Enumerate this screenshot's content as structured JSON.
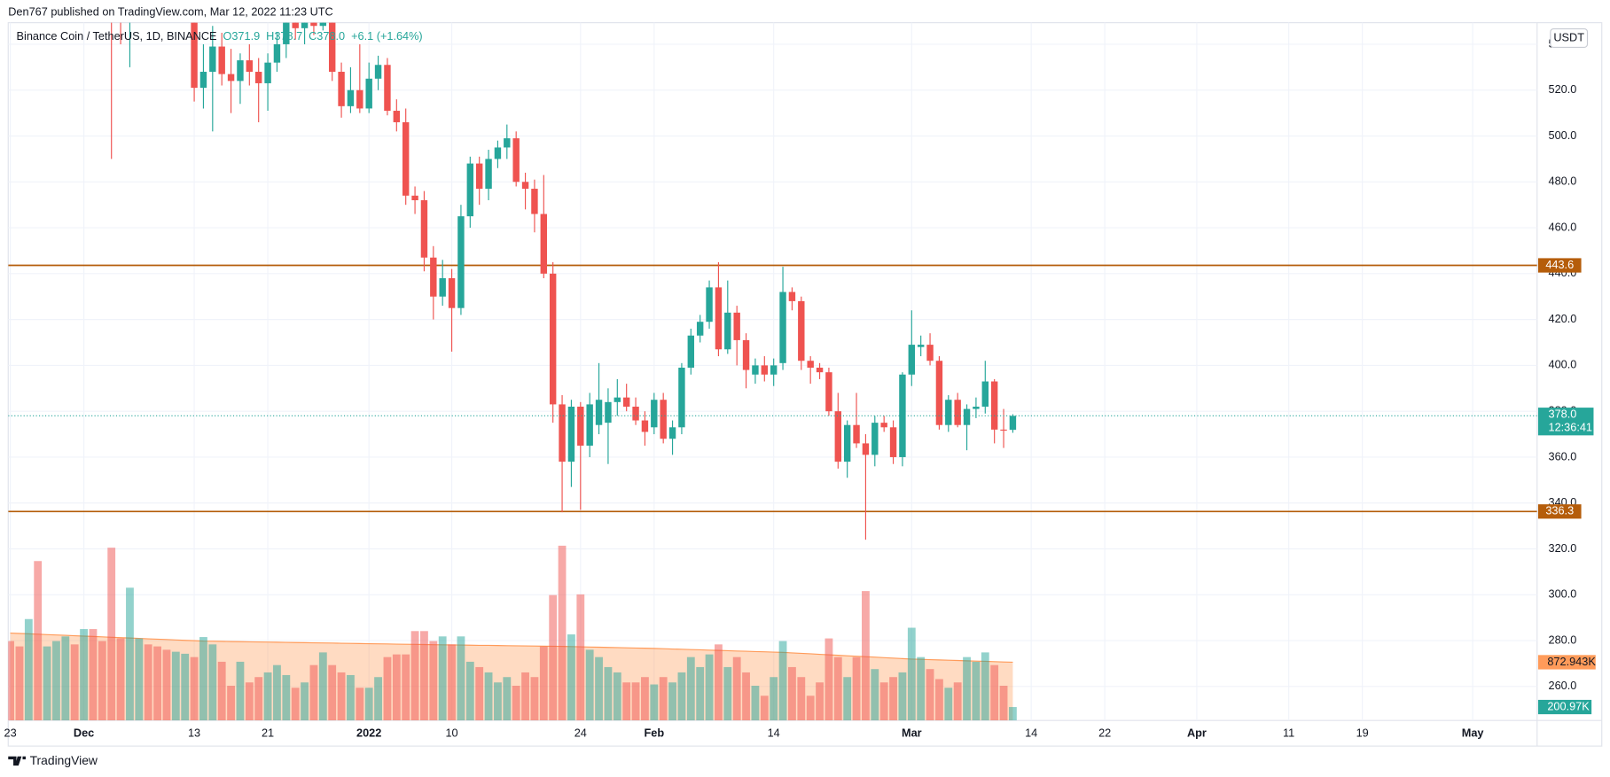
{
  "chart_data": {
    "type": "candlestick",
    "header": "Den767 published on TradingView.com, Mar 12, 2022 11:23 UTC",
    "legend": {
      "symbol": "Binance Coin / TetherUS, 1D, BINANCE",
      "values": [
        "O371.9",
        "H378.7",
        "C378.0",
        "+6.1 (+1.64%)"
      ]
    },
    "currency": "USDT",
    "footer": "TradingView",
    "up_color": "#26a69a",
    "down_color": "#ef5350",
    "x": [
      "2021-11-23",
      "2021-11-24",
      "2021-11-25",
      "2021-11-26",
      "2021-11-27",
      "2021-11-28",
      "2021-11-29",
      "2021-11-30",
      "2021-12-01",
      "2021-12-02",
      "2021-12-03",
      "2021-12-04",
      "2021-12-05",
      "2021-12-06",
      "2021-12-07",
      "2021-12-08",
      "2021-12-09",
      "2021-12-10",
      "2021-12-11",
      "2021-12-12",
      "2021-12-13",
      "2021-12-14",
      "2021-12-15",
      "2021-12-16",
      "2021-12-17",
      "2021-12-18",
      "2021-12-19",
      "2021-12-20",
      "2021-12-21",
      "2021-12-22",
      "2021-12-23",
      "2021-12-24",
      "2021-12-25",
      "2021-12-26",
      "2021-12-27",
      "2021-12-28",
      "2021-12-29",
      "2021-12-30",
      "2021-12-31",
      "2022-01-01",
      "2022-01-02",
      "2022-01-03",
      "2022-01-04",
      "2022-01-05",
      "2022-01-06",
      "2022-01-07",
      "2022-01-08",
      "2022-01-09",
      "2022-01-10",
      "2022-01-11",
      "2022-01-12",
      "2022-01-13",
      "2022-01-14",
      "2022-01-15",
      "2022-01-16",
      "2022-01-17",
      "2022-01-18",
      "2022-01-19",
      "2022-01-20",
      "2022-01-21",
      "2022-01-22",
      "2022-01-23",
      "2022-01-24",
      "2022-01-25",
      "2022-01-26",
      "2022-01-27",
      "2022-01-28",
      "2022-01-29",
      "2022-01-30",
      "2022-01-31",
      "2022-02-01",
      "2022-02-02",
      "2022-02-03",
      "2022-02-04",
      "2022-02-05",
      "2022-02-06",
      "2022-02-07",
      "2022-02-08",
      "2022-02-09",
      "2022-02-10",
      "2022-02-11",
      "2022-02-12",
      "2022-02-13",
      "2022-02-14",
      "2022-02-15",
      "2022-02-16",
      "2022-02-17",
      "2022-02-18",
      "2022-02-19",
      "2022-02-20",
      "2022-02-21",
      "2022-02-22",
      "2022-02-23",
      "2022-02-24",
      "2022-02-25",
      "2022-02-26",
      "2022-02-27",
      "2022-02-28",
      "2022-03-01",
      "2022-03-02",
      "2022-03-03",
      "2022-03-04",
      "2022-03-05",
      "2022-03-06",
      "2022-03-07",
      "2022-03-08",
      "2022-03-09",
      "2022-03-10",
      "2022-03-11",
      "2022-03-12"
    ],
    "open": [
      590,
      578,
      568,
      598,
      576,
      588,
      596,
      620,
      614,
      628,
      606,
      584,
      565,
      556,
      578,
      584,
      578,
      562,
      558,
      566,
      568,
      521,
      528,
      539,
      527,
      524,
      533,
      528,
      523,
      532,
      540,
      556,
      547,
      550,
      548,
      560,
      528,
      513,
      520,
      512,
      525,
      531,
      511,
      506,
      474,
      472,
      447,
      430,
      438,
      425,
      465,
      488,
      477,
      490,
      495,
      499,
      480,
      477,
      466,
      440,
      383,
      358,
      382,
      365,
      374,
      375,
      384,
      386,
      382,
      376,
      373,
      385,
      368,
      373,
      399,
      413,
      419,
      434,
      407,
      423,
      411,
      396,
      400,
      396,
      401,
      432,
      428,
      402,
      399,
      397,
      380,
      358,
      374,
      366,
      361,
      375,
      373,
      360,
      396,
      408,
      409,
      402,
      374,
      385,
      374,
      381,
      382,
      393,
      372,
      371.9
    ],
    "high": [
      598,
      586,
      602,
      605,
      592,
      600,
      628,
      632,
      640,
      636,
      612,
      588,
      574,
      582,
      590,
      592,
      586,
      574,
      570,
      578,
      572,
      540,
      548,
      545,
      538,
      536,
      540,
      534,
      536,
      545,
      562,
      565,
      556,
      562,
      568,
      562,
      532,
      530,
      540,
      532,
      535,
      534,
      516,
      512,
      478,
      476,
      452,
      446,
      442,
      470,
      491,
      491,
      494,
      498,
      505,
      502,
      484,
      481,
      483,
      445,
      387,
      385,
      384,
      388,
      401,
      390,
      394,
      392,
      386,
      380,
      388,
      388,
      376,
      401,
      416,
      422,
      437,
      445,
      437,
      426,
      414,
      403,
      404,
      403,
      443,
      434,
      430,
      404,
      401,
      399,
      388,
      376,
      388,
      370,
      378,
      378,
      376,
      397,
      424,
      413,
      414,
      404,
      387,
      388,
      383,
      386,
      402,
      394,
      381,
      378.7
    ],
    "low": [
      572,
      563,
      565,
      570,
      572,
      566,
      592,
      604,
      610,
      600,
      570,
      490,
      540,
      530,
      568,
      570,
      560,
      552,
      555,
      558,
      515,
      512,
      502,
      522,
      510,
      514,
      522,
      506,
      511,
      528,
      534,
      542,
      540,
      544,
      546,
      524,
      508,
      510,
      510,
      510,
      520,
      509,
      502,
      470,
      466,
      441,
      420,
      426,
      406,
      422,
      460,
      470,
      472,
      486,
      490,
      478,
      468,
      458,
      438,
      375,
      336,
      347,
      337,
      360,
      370,
      357,
      378,
      380,
      374,
      365,
      370,
      366,
      361,
      370,
      396,
      410,
      416,
      404,
      405,
      400,
      390,
      392,
      393,
      391,
      398,
      424,
      398,
      392,
      394,
      378,
      355,
      351,
      364,
      324,
      356,
      371,
      357,
      356,
      391,
      404,
      400,
      372,
      371,
      373,
      363,
      377,
      379,
      366,
      364,
      370.6
    ],
    "close": [
      578,
      568,
      598,
      576,
      588,
      596,
      620,
      614,
      628,
      606,
      584,
      565,
      556,
      578,
      584,
      578,
      562,
      558,
      566,
      568,
      521,
      528,
      539,
      527,
      524,
      533,
      528,
      523,
      532,
      540,
      556,
      547,
      550,
      548,
      560,
      528,
      513,
      520,
      512,
      525,
      531,
      511,
      506,
      474,
      472,
      447,
      430,
      438,
      425,
      465,
      488,
      477,
      490,
      495,
      499,
      480,
      477,
      466,
      440,
      383,
      358,
      382,
      365,
      383,
      385,
      384,
      386,
      382,
      376,
      371,
      385,
      368,
      373,
      399,
      413,
      419,
      434,
      407,
      423,
      411,
      398,
      400,
      396,
      400,
      432,
      428,
      402,
      399,
      397,
      380,
      358,
      374,
      366,
      361,
      375,
      373,
      360,
      396,
      409,
      409,
      402,
      374,
      385,
      374,
      381,
      382,
      393,
      372,
      371.9,
      378.0
    ],
    "last_price_label": "378.0",
    "countdown": "12:36:41",
    "xlim": [
      "2021-11-23",
      "2022-05-08"
    ],
    "xticks": [
      {
        "value": "2021-11-23",
        "label": "23"
      },
      {
        "value": "2021-12-01",
        "label": "Dec"
      },
      {
        "value": "2021-12-13",
        "label": "13"
      },
      {
        "value": "2021-12-21",
        "label": "21"
      },
      {
        "value": "2022-01-01",
        "label": "2022"
      },
      {
        "value": "2022-01-10",
        "label": "10"
      },
      {
        "value": "2022-01-24",
        "label": "24"
      },
      {
        "value": "2022-02-01",
        "label": "Feb"
      },
      {
        "value": "2022-02-14",
        "label": "14"
      },
      {
        "value": "2022-03-01",
        "label": "Mar"
      },
      {
        "value": "2022-03-14",
        "label": "14"
      },
      {
        "value": "2022-03-22",
        "label": "22"
      },
      {
        "value": "2022-04-01",
        "label": "Apr"
      },
      {
        "value": "2022-04-11",
        "label": "11"
      },
      {
        "value": "2022-04-19",
        "label": "19"
      },
      {
        "value": "2022-05-01",
        "label": "May"
      }
    ],
    "ylim": [
      245.2,
      549.4
    ],
    "yticks": [
      {
        "value": 260,
        "label": "260.0"
      },
      {
        "value": 280,
        "label": "280.0"
      },
      {
        "value": 300,
        "label": "300.0"
      },
      {
        "value": 320,
        "label": "320.0"
      },
      {
        "value": 340,
        "label": "340.0"
      },
      {
        "value": 360,
        "label": "360.0"
      },
      {
        "value": 380,
        "label": "380.0"
      },
      {
        "value": 400,
        "label": "400.0"
      },
      {
        "value": 420,
        "label": "420.0"
      },
      {
        "value": 440,
        "label": "440.0"
      },
      {
        "value": 460,
        "label": "460.0"
      },
      {
        "value": 480,
        "label": "480.0"
      },
      {
        "value": 500,
        "label": "500.0"
      },
      {
        "value": 520,
        "label": "520.0"
      },
      {
        "value": 540,
        "label": "540.0"
      }
    ],
    "grid": true,
    "levels": [
      {
        "value": 443.6,
        "color": "#b55d0a"
      },
      {
        "value": 336.3,
        "color": "#b55d0a"
      }
    ],
    "volume": {
      "ylim": [
        0,
        3000000
      ],
      "up_color": "rgba(38,166,154,0.5)",
      "down_color": "rgba(239,83,80,0.5)",
      "label_color": "#26a69a",
      "values": [
        1190000,
        1110000,
        1520000,
        2390000,
        1110000,
        1190000,
        1260000,
        1140000,
        1370000,
        1370000,
        1190000,
        2590000,
        1230000,
        1990000,
        1230000,
        1140000,
        1110000,
        1060000,
        1030000,
        1000000,
        950000,
        1250000,
        1140000,
        880000,
        520000,
        880000,
        570000,
        650000,
        720000,
        830000,
        680000,
        490000,
        570000,
        830000,
        1020000,
        830000,
        720000,
        680000,
        490000,
        490000,
        650000,
        950000,
        990000,
        990000,
        1340000,
        1340000,
        1190000,
        1260000,
        1140000,
        1260000,
        880000,
        800000,
        720000,
        570000,
        650000,
        520000,
        720000,
        650000,
        1110000,
        1880000,
        2620000,
        1290000,
        1890000,
        1060000,
        950000,
        800000,
        720000,
        570000,
        570000,
        650000,
        540000,
        650000,
        570000,
        720000,
        950000,
        800000,
        990000,
        1140000,
        800000,
        950000,
        720000,
        520000,
        370000,
        650000,
        1190000,
        800000,
        650000,
        370000,
        570000,
        1230000,
        950000,
        650000,
        950000,
        1940000,
        770000,
        570000,
        650000,
        720000,
        1390000,
        950000,
        770000,
        620000,
        490000,
        570000,
        950000,
        880000,
        1020000,
        830000,
        520000,
        200970
      ],
      "last_label": "200.97K",
      "ma": {
        "color": "#ff9b5a",
        "fill": "rgba(255,152,80,0.35)",
        "values": [
          1310000,
          1304000,
          1299000,
          1293000,
          1287000,
          1281000,
          1276000,
          1270000,
          1264000,
          1259000,
          1253000,
          1247000,
          1241000,
          1236000,
          1230000,
          1224000,
          1219000,
          1213000,
          1207000,
          1201000,
          1196000,
          1190000,
          1188000,
          1186000,
          1183000,
          1181000,
          1179000,
          1177000,
          1175000,
          1173000,
          1170000,
          1168000,
          1166000,
          1164000,
          1162000,
          1160000,
          1157000,
          1155000,
          1153000,
          1151000,
          1149000,
          1147000,
          1144000,
          1142000,
          1140000,
          1138000,
          1136000,
          1134000,
          1132000,
          1130000,
          1128000,
          1126000,
          1125000,
          1123000,
          1121000,
          1119000,
          1117000,
          1115000,
          1113000,
          1112000,
          1110000,
          1107000,
          1104000,
          1101000,
          1098000,
          1095000,
          1092000,
          1089000,
          1086000,
          1083000,
          1080000,
          1076000,
          1071000,
          1067000,
          1063000,
          1059000,
          1054000,
          1050000,
          1046000,
          1041000,
          1037000,
          1033000,
          1029000,
          1024000,
          1020000,
          1013000,
          1006000,
          999000,
          991000,
          984000,
          977000,
          970000,
          963000,
          956000,
          949000,
          941000,
          934000,
          927000,
          920000,
          916000,
          911000,
          907000,
          903000,
          899000,
          894000,
          890000,
          886000,
          881000,
          877000,
          872943
        ],
        "last_label": "872.943K"
      }
    }
  }
}
